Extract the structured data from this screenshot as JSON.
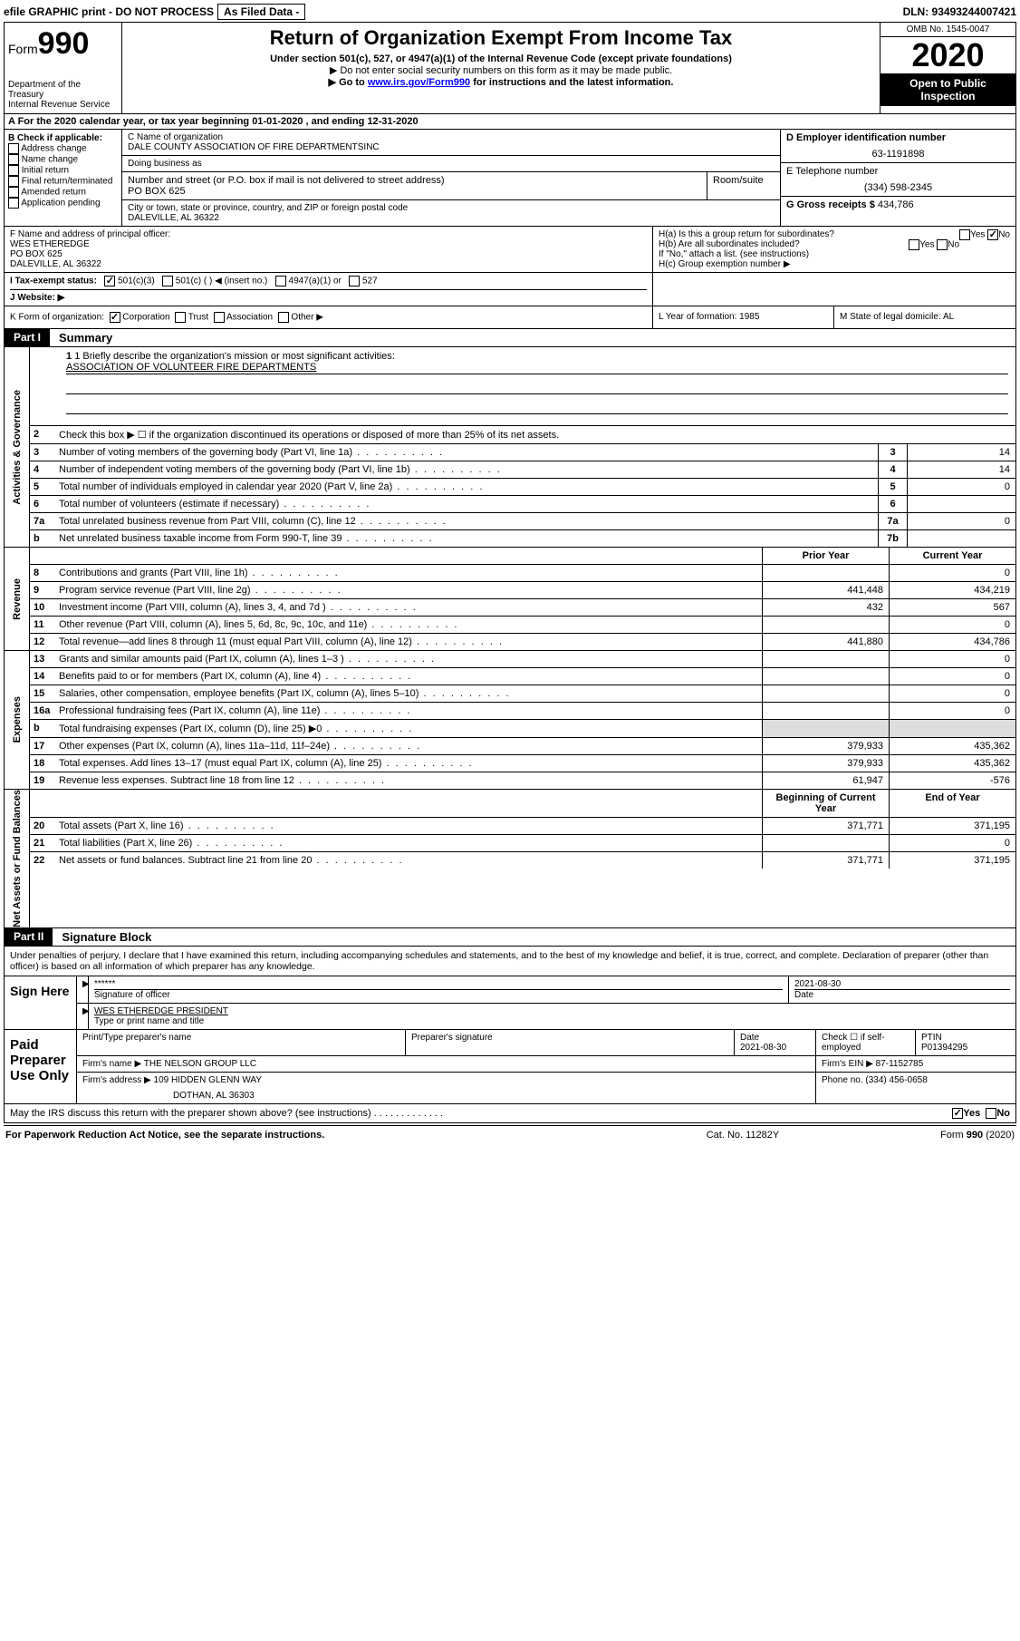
{
  "topbar": {
    "efile": "efile GRAPHIC print - DO NOT PROCESS",
    "asfiled": "As Filed Data -",
    "dln": "DLN: 93493244007421"
  },
  "header": {
    "form_label": "Form",
    "form_number": "990",
    "dept": "Department of the Treasury\nInternal Revenue Service",
    "title": "Return of Organization Exempt From Income Tax",
    "sub1": "Under section 501(c), 527, or 4947(a)(1) of the Internal Revenue Code (except private foundations)",
    "sub2": "▶ Do not enter social security numbers on this form as it may be made public.",
    "sub3_pre": "▶ Go to ",
    "sub3_link": "www.irs.gov/Form990",
    "sub3_post": " for instructions and the latest information.",
    "omb": "OMB No. 1545-0047",
    "year": "2020",
    "open": "Open to Public Inspection"
  },
  "rowA": "A   For the 2020 calendar year, or tax year beginning 01-01-2020   , and ending 12-31-2020",
  "colB": {
    "label": "B Check if applicable:",
    "items": [
      "Address change",
      "Name change",
      "Initial return",
      "Final return/terminated",
      "Amended return",
      "Application pending"
    ]
  },
  "colC": {
    "name_lbl": "C Name of organization",
    "name": "DALE COUNTY ASSOCIATION OF FIRE DEPARTMENTSINC",
    "dba_lbl": "Doing business as",
    "addr_lbl": "Number and street (or P.O. box if mail is not delivered to street address)",
    "room_lbl": "Room/suite",
    "addr": "PO BOX 625",
    "city_lbl": "City or town, state or province, country, and ZIP or foreign postal code",
    "city": "DALEVILLE, AL  36322"
  },
  "colD": {
    "ein_lbl": "D Employer identification number",
    "ein": "63-1191898",
    "tel_lbl": "E Telephone number",
    "tel": "(334) 598-2345",
    "gross_lbl": "G Gross receipts $",
    "gross": "434,786"
  },
  "rowF": {
    "lbl": "F  Name and address of principal officer:",
    "name": "WES ETHEREDGE",
    "addr1": "PO BOX 625",
    "addr2": "DALEVILLE, AL  36322"
  },
  "rowH": {
    "ha": "H(a)  Is this a group return for subordinates?",
    "hb": "H(b)  Are all subordinates included?",
    "hb2": "If \"No,\" attach a list. (see instructions)",
    "hc": "H(c)  Group exemption number ▶",
    "yes": "Yes",
    "no": "No"
  },
  "rowI": {
    "lbl": "I   Tax-exempt status:",
    "opts": [
      "501(c)(3)",
      "501(c) (   ) ◀ (insert no.)",
      "4947(a)(1) or",
      "527"
    ]
  },
  "rowJ": "J   Website: ▶",
  "rowK": {
    "lbl": "K Form of organization:",
    "opts": [
      "Corporation",
      "Trust",
      "Association",
      "Other ▶"
    ],
    "L": "L Year of formation: 1985",
    "M": "M State of legal domicile: AL"
  },
  "partI": {
    "tag": "Part I",
    "title": "Summary"
  },
  "section1": {
    "label": "Activities & Governance",
    "q1": "1 Briefly describe the organization's mission or most significant activities:",
    "mission": "ASSOCIATION OF VOLUNTEER FIRE DEPARTMENTS",
    "q2": "Check this box ▶ ☐ if the organization discontinued its operations or disposed of more than 25% of its net assets.",
    "lines": [
      {
        "n": "2",
        "desc": "",
        "box": "",
        "val": ""
      },
      {
        "n": "3",
        "desc": "Number of voting members of the governing body (Part VI, line 1a)",
        "box": "3",
        "val": "14"
      },
      {
        "n": "4",
        "desc": "Number of independent voting members of the governing body (Part VI, line 1b)",
        "box": "4",
        "val": "14"
      },
      {
        "n": "5",
        "desc": "Total number of individuals employed in calendar year 2020 (Part V, line 2a)",
        "box": "5",
        "val": "0"
      },
      {
        "n": "6",
        "desc": "Total number of volunteers (estimate if necessary)",
        "box": "6",
        "val": ""
      },
      {
        "n": "7a",
        "desc": "Total unrelated business revenue from Part VIII, column (C), line 12",
        "box": "7a",
        "val": "0"
      },
      {
        "n": "b",
        "desc": "Net unrelated business taxable income from Form 990-T, line 39",
        "box": "7b",
        "val": ""
      }
    ]
  },
  "revenue": {
    "label": "Revenue",
    "hdr_prior": "Prior Year",
    "hdr_curr": "Current Year",
    "lines": [
      {
        "n": "8",
        "desc": "Contributions and grants (Part VIII, line 1h)",
        "prior": "",
        "curr": "0"
      },
      {
        "n": "9",
        "desc": "Program service revenue (Part VIII, line 2g)",
        "prior": "441,448",
        "curr": "434,219"
      },
      {
        "n": "10",
        "desc": "Investment income (Part VIII, column (A), lines 3, 4, and 7d )",
        "prior": "432",
        "curr": "567"
      },
      {
        "n": "11",
        "desc": "Other revenue (Part VIII, column (A), lines 5, 6d, 8c, 9c, 10c, and 11e)",
        "prior": "",
        "curr": "0"
      },
      {
        "n": "12",
        "desc": "Total revenue—add lines 8 through 11 (must equal Part VIII, column (A), line 12)",
        "prior": "441,880",
        "curr": "434,786"
      }
    ]
  },
  "expenses": {
    "label": "Expenses",
    "lines": [
      {
        "n": "13",
        "desc": "Grants and similar amounts paid (Part IX, column (A), lines 1–3 )",
        "prior": "",
        "curr": "0"
      },
      {
        "n": "14",
        "desc": "Benefits paid to or for members (Part IX, column (A), line 4)",
        "prior": "",
        "curr": "0"
      },
      {
        "n": "15",
        "desc": "Salaries, other compensation, employee benefits (Part IX, column (A), lines 5–10)",
        "prior": "",
        "curr": "0"
      },
      {
        "n": "16a",
        "desc": "Professional fundraising fees (Part IX, column (A), line 11e)",
        "prior": "",
        "curr": "0"
      },
      {
        "n": "b",
        "desc": "Total fundraising expenses (Part IX, column (D), line 25) ▶0",
        "prior": "SHADE",
        "curr": "SHADE"
      },
      {
        "n": "17",
        "desc": "Other expenses (Part IX, column (A), lines 11a–11d, 11f–24e)",
        "prior": "379,933",
        "curr": "435,362"
      },
      {
        "n": "18",
        "desc": "Total expenses. Add lines 13–17 (must equal Part IX, column (A), line 25)",
        "prior": "379,933",
        "curr": "435,362"
      },
      {
        "n": "19",
        "desc": "Revenue less expenses. Subtract line 18 from line 12",
        "prior": "61,947",
        "curr": "-576"
      }
    ]
  },
  "netassets": {
    "label": "Net Assets or Fund Balances",
    "hdr_prior": "Beginning of Current Year",
    "hdr_curr": "End of Year",
    "lines": [
      {
        "n": "20",
        "desc": "Total assets (Part X, line 16)",
        "prior": "371,771",
        "curr": "371,195"
      },
      {
        "n": "21",
        "desc": "Total liabilities (Part X, line 26)",
        "prior": "",
        "curr": "0"
      },
      {
        "n": "22",
        "desc": "Net assets or fund balances. Subtract line 21 from line 20",
        "prior": "371,771",
        "curr": "371,195"
      }
    ]
  },
  "partII": {
    "tag": "Part II",
    "title": "Signature Block"
  },
  "perjury": "Under penalties of perjury, I declare that I have examined this return, including accompanying schedules and statements, and to the best of my knowledge and belief, it is true, correct, and complete. Declaration of preparer (other than officer) is based on all information of which preparer has any knowledge.",
  "sign": {
    "label": "Sign Here",
    "stars": "******",
    "sig_lbl": "Signature of officer",
    "date": "2021-08-30",
    "date_lbl": "Date",
    "name": "WES ETHEREDGE PRESIDENT",
    "name_lbl": "Type or print name and title"
  },
  "preparer": {
    "label": "Paid Preparer Use Only",
    "col1": "Print/Type preparer's name",
    "col2": "Preparer's signature",
    "col3": "Date",
    "date": "2021-08-30",
    "col4": "Check ☐ if self-employed",
    "col5": "PTIN",
    "ptin": "P01394295",
    "firm_lbl": "Firm's name    ▶",
    "firm": "THE NELSON GROUP LLC",
    "ein_lbl": "Firm's EIN ▶",
    "ein": "87-1152785",
    "addr_lbl": "Firm's address ▶",
    "addr1": "109 HIDDEN GLENN WAY",
    "addr2": "DOTHAN, AL  36303",
    "phone_lbl": "Phone no.",
    "phone": "(334) 456-0658"
  },
  "mayirs": {
    "q": "May the IRS discuss this return with the preparer shown above? (see instructions)  .   .   .   .   .   .   .   .   .   .   .   .   .",
    "yes": "Yes",
    "no": "No"
  },
  "footer": {
    "l": "For Paperwork Reduction Act Notice, see the separate instructions.",
    "m": "Cat. No. 11282Y",
    "r": "Form 990 (2020)"
  }
}
